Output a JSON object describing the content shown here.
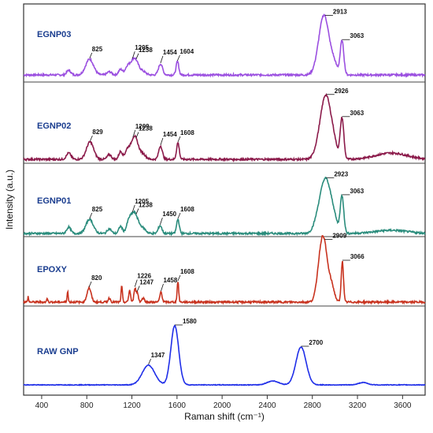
{
  "chart_data": {
    "type": "line",
    "xlabel": "Raman shift (cm⁻¹)",
    "ylabel": "Intensity (a.u.)",
    "xlim": [
      240,
      3800
    ],
    "xticks": [
      "400",
      "800",
      "1200",
      "1600",
      "2000",
      "2400",
      "2800",
      "3200",
      "3600"
    ],
    "xtick_values": [
      400,
      800,
      1200,
      1600,
      2000,
      2400,
      2800,
      3200,
      3600
    ],
    "grid": false,
    "stacked_offset_panels": true,
    "series": [
      {
        "name": "EGNP03",
        "color": "#9b4fe0",
        "peaks": [
          {
            "x": 825,
            "label": "825"
          },
          {
            "x": 1205,
            "label": "1205"
          },
          {
            "x": 1238,
            "label": "1238"
          },
          {
            "x": 1454,
            "label": "1454"
          },
          {
            "x": 1604,
            "label": "1604"
          },
          {
            "x": 2913,
            "label": "2913"
          },
          {
            "x": 3063,
            "label": "3063"
          }
        ]
      },
      {
        "name": "EGNP02",
        "color": "#8b1a4a",
        "peaks": [
          {
            "x": 829,
            "label": "829"
          },
          {
            "x": 1209,
            "label": "1209"
          },
          {
            "x": 1238,
            "label": "1238"
          },
          {
            "x": 1454,
            "label": "1454"
          },
          {
            "x": 1608,
            "label": "1608"
          },
          {
            "x": 2926,
            "label": "2926"
          },
          {
            "x": 3063,
            "label": "3063"
          }
        ]
      },
      {
        "name": "EGNP01",
        "color": "#2a8c7c",
        "peaks": [
          {
            "x": 825,
            "label": "825"
          },
          {
            "x": 1205,
            "label": "1205"
          },
          {
            "x": 1238,
            "label": "1238"
          },
          {
            "x": 1450,
            "label": "1450"
          },
          {
            "x": 1608,
            "label": "1608"
          },
          {
            "x": 2923,
            "label": "2923"
          },
          {
            "x": 3063,
            "label": "3063"
          }
        ]
      },
      {
        "name": "EPOXY",
        "color": "#c8321e",
        "peaks": [
          {
            "x": 820,
            "label": "820"
          },
          {
            "x": 1226,
            "label": "1226"
          },
          {
            "x": 1247,
            "label": "1247"
          },
          {
            "x": 1458,
            "label": "1458"
          },
          {
            "x": 1608,
            "label": "1608"
          },
          {
            "x": 2909,
            "label": "2909"
          },
          {
            "x": 3066,
            "label": "3066"
          }
        ]
      },
      {
        "name": "RAW GNP",
        "color": "#1f2ee8",
        "peaks": [
          {
            "x": 1347,
            "label": "1347"
          },
          {
            "x": 1580,
            "label": "1580"
          },
          {
            "x": 2700,
            "label": "2700"
          }
        ]
      }
    ]
  }
}
